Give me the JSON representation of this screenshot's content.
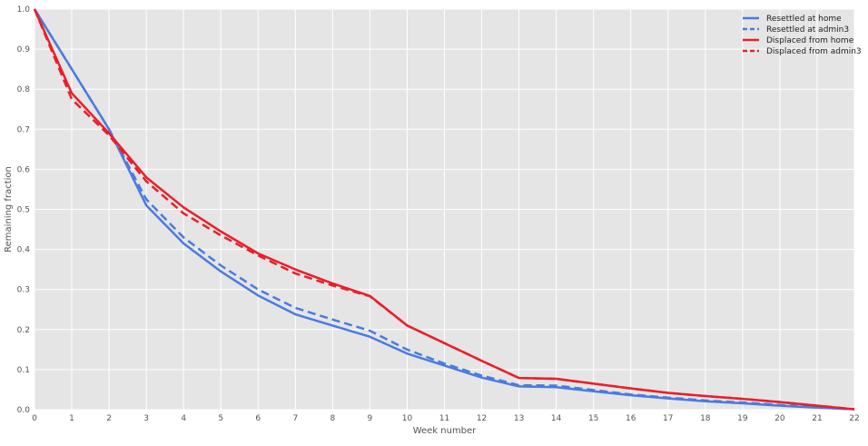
{
  "chart_data": {
    "type": "line",
    "xlabel": "Week number",
    "ylabel": "Remaining fraction",
    "xlim": [
      0,
      22
    ],
    "ylim": [
      0,
      1.0
    ],
    "x_ticks": [
      "0",
      "1",
      "2",
      "3",
      "4",
      "5",
      "6",
      "7",
      "8",
      "9",
      "10",
      "11",
      "12",
      "13",
      "14",
      "15",
      "16",
      "17",
      "18",
      "19",
      "20",
      "21",
      "22"
    ],
    "y_ticks": [
      "0.0",
      "0.1",
      "0.2",
      "0.3",
      "0.4",
      "0.5",
      "0.6",
      "0.7",
      "0.8",
      "0.9",
      "1.0"
    ],
    "grid": true,
    "legend_position": "top-right",
    "x": [
      0,
      1,
      2,
      3,
      4,
      5,
      6,
      7,
      8,
      9,
      10,
      11,
      12,
      13,
      14,
      15,
      16,
      17,
      18,
      19,
      20,
      21,
      22
    ],
    "series": [
      {
        "name": "Resettled at home",
        "color": "#4a7be0",
        "dashed": false,
        "values": [
          1.0,
          0.85,
          0.7,
          0.51,
          0.415,
          0.345,
          0.285,
          0.238,
          0.21,
          0.182,
          0.14,
          0.11,
          0.08,
          0.058,
          0.056,
          0.046,
          0.036,
          0.028,
          0.021,
          0.016,
          0.01,
          0.005,
          0.001
        ]
      },
      {
        "name": "Resettled at admin3",
        "color": "#4a7be0",
        "dashed": true,
        "values": [
          1.0,
          0.85,
          0.7,
          0.525,
          0.43,
          0.36,
          0.3,
          0.254,
          0.225,
          0.197,
          0.15,
          0.115,
          0.085,
          0.061,
          0.06,
          0.049,
          0.038,
          0.03,
          0.023,
          0.018,
          0.012,
          0.006,
          0.001
        ]
      },
      {
        "name": "Displaced from home",
        "color": "#e8202a",
        "dashed": false,
        "values": [
          1.0,
          0.79,
          0.69,
          0.58,
          0.505,
          0.445,
          0.39,
          0.35,
          0.315,
          0.284,
          0.21,
          0.166,
          0.122,
          0.079,
          0.077,
          0.065,
          0.053,
          0.042,
          0.034,
          0.027,
          0.019,
          0.01,
          0.001
        ]
      },
      {
        "name": "Displaced from admin3",
        "color": "#e8202a",
        "dashed": true,
        "values": [
          1.0,
          0.775,
          0.685,
          0.57,
          0.49,
          0.435,
          0.385,
          0.34,
          0.31,
          0.283,
          0.21,
          0.166,
          0.122,
          0.079,
          0.077,
          0.065,
          0.053,
          0.042,
          0.034,
          0.027,
          0.019,
          0.01,
          0.001
        ]
      }
    ]
  }
}
